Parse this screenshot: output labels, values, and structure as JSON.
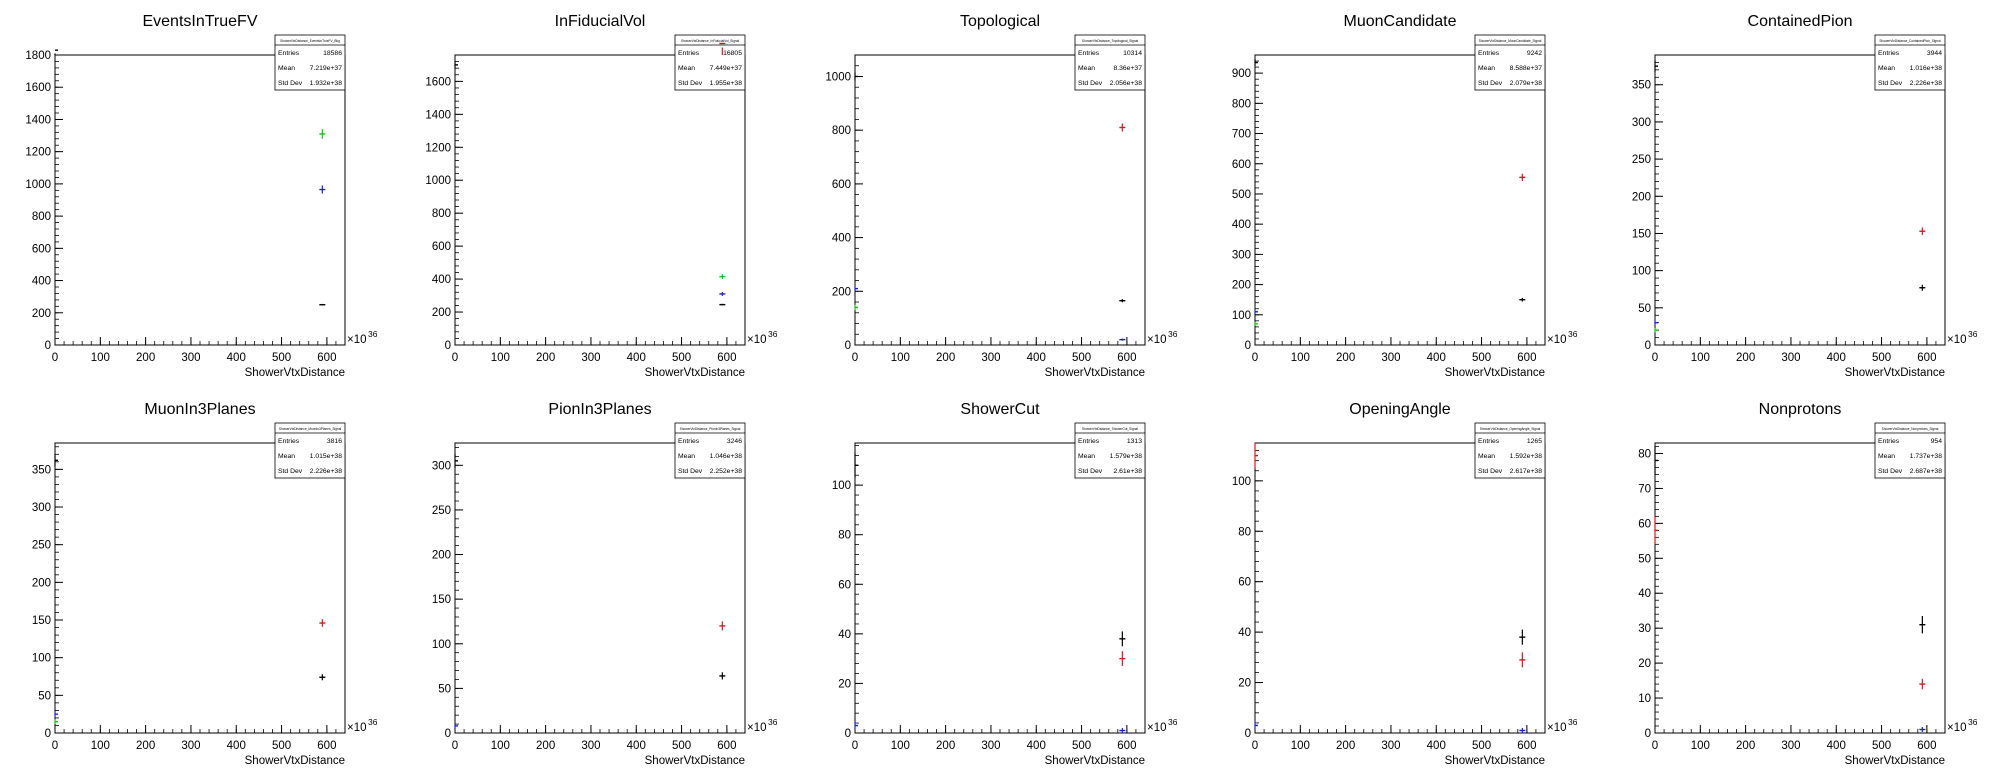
{
  "colors": {
    "black": "#000000",
    "red": "#e0141e",
    "green": "#12c412",
    "blue": "#1a22cc"
  },
  "chart_data": [
    {
      "type": "scatter",
      "title": "EventsInTrueFV",
      "xlabel": "ShowerVtxDistance",
      "x_exponent": "×10",
      "x_exponent_power": "36",
      "ylim": [
        0,
        1800
      ],
      "yticks": [
        "0",
        "200",
        "400",
        "600",
        "800",
        "1000",
        "1200",
        "1400",
        "1600",
        "1800"
      ],
      "xticks": [
        "0",
        "100",
        "200",
        "300",
        "400",
        "500",
        "600"
      ],
      "xlim": [
        0,
        640
      ],
      "stats": {
        "name": "ShowerVtxDistance_EventsInTrueFV_Bkg",
        "entries_label": "Entries",
        "entries": "18586",
        "mean_label": "Mean",
        "mean": "7.219e+37",
        "stddev_label": "Std Dev",
        "stddev": "1.932e+38"
      },
      "series": [
        {
          "color": "black",
          "points": [
            [
              0,
              1830,
              20
            ],
            [
              590,
              250,
              5
            ]
          ]
        },
        {
          "color": "green",
          "points": [
            [
              590,
              1310,
              30
            ]
          ]
        },
        {
          "color": "blue",
          "points": [
            [
              590,
              965,
              25
            ]
          ]
        }
      ]
    },
    {
      "type": "scatter",
      "title": "InFiducialVol",
      "xlabel": "ShowerVtxDistance",
      "x_exponent": "×10",
      "x_exponent_power": "36",
      "ylim": [
        0,
        1760
      ],
      "yticks": [
        "0",
        "200",
        "400",
        "600",
        "800",
        "1000",
        "1200",
        "1400",
        "1600"
      ],
      "xticks": [
        "0",
        "100",
        "200",
        "300",
        "400",
        "500",
        "600"
      ],
      "xlim": [
        0,
        640
      ],
      "stats": {
        "name": "ShowerVtxDistance_InFiducialVol_Signal",
        "entries_label": "Entries",
        "entries": "16805",
        "mean_label": "Mean",
        "mean": "7.449e+37",
        "stddev_label": "Std Dev",
        "stddev": "1.955e+38"
      },
      "series": [
        {
          "color": "black",
          "points": [
            [
              0,
              1700,
              20
            ],
            [
              590,
              245,
              5
            ]
          ]
        },
        {
          "color": "red",
          "points": [
            [
              590,
              1830,
              25
            ]
          ]
        },
        {
          "color": "green",
          "points": [
            [
              590,
              415,
              15
            ]
          ]
        },
        {
          "color": "blue",
          "points": [
            [
              590,
              310,
              12
            ]
          ]
        }
      ]
    },
    {
      "type": "scatter",
      "title": "Topological",
      "xlabel": "ShowerVtxDistance",
      "x_exponent": "×10",
      "x_exponent_power": "36",
      "ylim": [
        0,
        1080
      ],
      "yticks": [
        "0",
        "200",
        "400",
        "600",
        "800",
        "1000"
      ],
      "xticks": [
        "0",
        "100",
        "200",
        "300",
        "400",
        "500",
        "600"
      ],
      "xlim": [
        0,
        640
      ],
      "stats": {
        "name": "ShowerVtxDistance_Topological_Signal",
        "entries_label": "Entries",
        "entries": "10314",
        "mean_label": "Mean",
        "mean": "8.36e+37",
        "stddev_label": "Std Dev",
        "stddev": "2.056e+38"
      },
      "series": [
        {
          "color": "black",
          "points": [
            [
              0,
              1000,
              15
            ],
            [
              590,
              165,
              6
            ]
          ]
        },
        {
          "color": "red",
          "points": [
            [
              590,
              810,
              15
            ]
          ]
        },
        {
          "color": "green",
          "points": [
            [
              0,
              140,
              10
            ]
          ]
        },
        {
          "color": "blue",
          "points": [
            [
              0,
              210,
              10
            ],
            [
              590,
              20,
              4
            ]
          ]
        }
      ]
    },
    {
      "type": "scatter",
      "title": "MuonCandidate",
      "xlabel": "ShowerVtxDistance",
      "x_exponent": "×10",
      "x_exponent_power": "36",
      "ylim": [
        0,
        960
      ],
      "yticks": [
        "0",
        "100",
        "200",
        "300",
        "400",
        "500",
        "600",
        "700",
        "800",
        "900"
      ],
      "xticks": [
        "0",
        "100",
        "200",
        "300",
        "400",
        "500",
        "600"
      ],
      "xlim": [
        0,
        640
      ],
      "stats": {
        "name": "ShowerVtxDistance_MuonCandidate_Signal",
        "entries_label": "Entries",
        "entries": "9242",
        "mean_label": "Mean",
        "mean": "8.588e+37",
        "stddev_label": "Std Dev",
        "stddev": "2.079e+38"
      },
      "series": [
        {
          "color": "black",
          "points": [
            [
              0,
              935,
              12
            ],
            [
              590,
              150,
              6
            ]
          ]
        },
        {
          "color": "red",
          "points": [
            [
              590,
              555,
              12
            ]
          ]
        },
        {
          "color": "green",
          "points": [
            [
              0,
              70,
              6
            ]
          ]
        },
        {
          "color": "blue",
          "points": [
            [
              0,
              110,
              8
            ]
          ]
        }
      ]
    },
    {
      "type": "scatter",
      "title": "ContainedPion",
      "xlabel": "ShowerVtxDistance",
      "x_exponent": "×10",
      "x_exponent_power": "36",
      "ylim": [
        0,
        390
      ],
      "yticks": [
        "0",
        "50",
        "100",
        "150",
        "200",
        "250",
        "300",
        "350"
      ],
      "xticks": [
        "0",
        "100",
        "200",
        "300",
        "400",
        "500",
        "600"
      ],
      "xlim": [
        0,
        640
      ],
      "stats": {
        "name": "ShowerVtxDistance_ContainedPion_Signal",
        "entries_label": "Entries",
        "entries": "3944",
        "mean_label": "Mean",
        "mean": "1.016e+38",
        "stddev_label": "Std Dev",
        "stddev": "2.226e+38"
      },
      "series": [
        {
          "color": "black",
          "points": [
            [
              0,
              375,
              8
            ],
            [
              590,
              77,
              4
            ]
          ]
        },
        {
          "color": "red",
          "points": [
            [
              590,
              153,
              5
            ]
          ]
        },
        {
          "color": "green",
          "points": [
            [
              0,
              20,
              3
            ]
          ]
        },
        {
          "color": "blue",
          "points": [
            [
              0,
              30,
              4
            ]
          ]
        }
      ]
    },
    {
      "type": "scatter",
      "title": "MuonIn3Planes",
      "xlabel": "ShowerVtxDistance",
      "x_exponent": "×10",
      "x_exponent_power": "36",
      "ylim": [
        0,
        385
      ],
      "yticks": [
        "0",
        "50",
        "100",
        "150",
        "200",
        "250",
        "300",
        "350"
      ],
      "xticks": [
        "0",
        "100",
        "200",
        "300",
        "400",
        "500",
        "600"
      ],
      "xlim": [
        0,
        640
      ],
      "stats": {
        "name": "ShowerVtxDistance_MuonIn3Planes_Signal",
        "entries_label": "Entries",
        "entries": "3816",
        "mean_label": "Mean",
        "mean": "1.015e+38",
        "stddev_label": "Std Dev",
        "stddev": "2.226e+38"
      },
      "series": [
        {
          "color": "black",
          "points": [
            [
              0,
              362,
              8
            ],
            [
              590,
              74,
              4
            ]
          ]
        },
        {
          "color": "red",
          "points": [
            [
              590,
              146,
              5
            ]
          ]
        },
        {
          "color": "green",
          "points": [
            [
              0,
              15,
              3
            ]
          ]
        },
        {
          "color": "blue",
          "points": [
            [
              0,
              25,
              4
            ]
          ]
        }
      ]
    },
    {
      "type": "scatter",
      "title": "PionIn3Planes",
      "xlabel": "ShowerVtxDistance",
      "x_exponent": "×10",
      "x_exponent_power": "36",
      "ylim": [
        0,
        325
      ],
      "yticks": [
        "0",
        "50",
        "100",
        "150",
        "200",
        "250",
        "300"
      ],
      "xticks": [
        "0",
        "100",
        "200",
        "300",
        "400",
        "500",
        "600"
      ],
      "xlim": [
        0,
        640
      ],
      "stats": {
        "name": "ShowerVtxDistance_PionIn3Planes_Signal",
        "entries_label": "Entries",
        "entries": "3246",
        "mean_label": "Mean",
        "mean": "1.046e+38",
        "stddev_label": "Std Dev",
        "stddev": "2.252e+38"
      },
      "series": [
        {
          "color": "black",
          "points": [
            [
              0,
              305,
              8
            ],
            [
              590,
              64,
              4
            ]
          ]
        },
        {
          "color": "red",
          "points": [
            [
              590,
              120,
              5
            ]
          ]
        },
        {
          "color": "blue",
          "points": [
            [
              0,
              8,
              2
            ]
          ]
        }
      ]
    },
    {
      "type": "scatter",
      "title": "ShowerCut",
      "xlabel": "ShowerVtxDistance",
      "x_exponent": "×10",
      "x_exponent_power": "36",
      "ylim": [
        0,
        117
      ],
      "yticks": [
        "0",
        "20",
        "40",
        "60",
        "80",
        "100"
      ],
      "xticks": [
        "0",
        "100",
        "200",
        "300",
        "400",
        "500",
        "600"
      ],
      "xlim": [
        0,
        640
      ],
      "stats": {
        "name": "ShowerVtxDistance_ShowerCut_Signal",
        "entries_label": "Entries",
        "entries": "1313",
        "mean_label": "Mean",
        "mean": "1.579e+38",
        "stddev_label": "Std Dev",
        "stddev": "2.61e+38"
      },
      "series": [
        {
          "color": "black",
          "points": [
            [
              0,
              108,
              5
            ],
            [
              590,
              38,
              3
            ]
          ]
        },
        {
          "color": "red",
          "points": [
            [
              590,
              30,
              3
            ]
          ]
        },
        {
          "color": "blue",
          "points": [
            [
              0,
              3,
              1.5
            ],
            [
              590,
              1,
              1
            ]
          ]
        }
      ]
    },
    {
      "type": "scatter",
      "title": "OpeningAngle",
      "xlabel": "ShowerVtxDistance",
      "x_exponent": "×10",
      "x_exponent_power": "36",
      "ylim": [
        0,
        115
      ],
      "yticks": [
        "0",
        "20",
        "40",
        "60",
        "80",
        "100"
      ],
      "xticks": [
        "0",
        "100",
        "200",
        "300",
        "400",
        "500",
        "600"
      ],
      "xlim": [
        0,
        640
      ],
      "stats": {
        "name": "ShowerVtxDistance_OpeningAngle_Signal",
        "entries_label": "Entries",
        "entries": "1265",
        "mean_label": "Mean",
        "mean": "1.592e+38",
        "stddev_label": "Std Dev",
        "stddev": "2.617e+38"
      },
      "series": [
        {
          "color": "red",
          "points": [
            [
              0,
              110,
              5
            ],
            [
              590,
              29,
              3
            ]
          ]
        },
        {
          "color": "black",
          "points": [
            [
              590,
              38,
              3
            ]
          ]
        },
        {
          "color": "blue",
          "points": [
            [
              0,
              3,
              1.5
            ],
            [
              590,
              1,
              1
            ]
          ]
        }
      ]
    },
    {
      "type": "scatter",
      "title": "Nonprotons",
      "xlabel": "ShowerVtxDistance",
      "x_exponent": "×10",
      "x_exponent_power": "36",
      "ylim": [
        0,
        83
      ],
      "yticks": [
        "0",
        "10",
        "20",
        "30",
        "40",
        "50",
        "60",
        "70",
        "80"
      ],
      "xticks": [
        "0",
        "100",
        "200",
        "300",
        "400",
        "500",
        "600"
      ],
      "xlim": [
        0,
        640
      ],
      "stats": {
        "name": "ShowerVtxDistance_Nonprotons_Signal",
        "entries_label": "Entries",
        "entries": "954",
        "mean_label": "Mean",
        "mean": "1.737e+38",
        "stddev_label": "Std Dev",
        "stddev": "2.687e+38"
      },
      "series": [
        {
          "color": "black",
          "points": [
            [
              0,
              78,
              4
            ],
            [
              590,
              31,
              2.5
            ]
          ]
        },
        {
          "color": "red",
          "points": [
            [
              0,
              58,
              4
            ],
            [
              590,
              14,
              1.5
            ]
          ]
        },
        {
          "color": "blue",
          "points": [
            [
              590,
              1,
              0.7
            ]
          ]
        }
      ]
    }
  ]
}
